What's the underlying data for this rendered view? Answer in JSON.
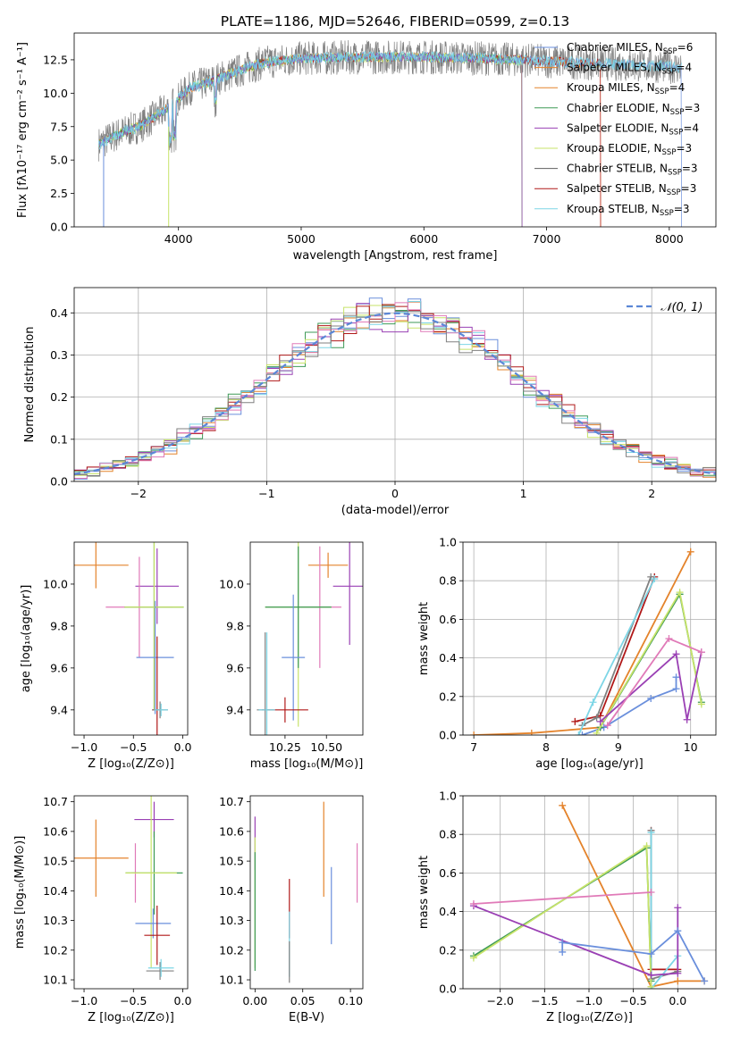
{
  "figure_title": "PLATE=1186, MJD=52646, FIBERID=0599, z=0.13",
  "colors": {
    "blue": "#6a8fdc",
    "orange": "#e4832b",
    "green": "#3e9a57",
    "purple": "#9a40b4",
    "pink": "#e07ab8",
    "lime": "#c7e36a",
    "gray": "#808080",
    "red": "#b01818",
    "cyan": "#7dd6e6"
  },
  "legend": [
    {
      "label": "Chabrier MILES, N",
      "sub": "SSP",
      "eq": "=6",
      "color": "#6a8fdc"
    },
    {
      "label": "Salpeter MILES, N",
      "sub": "SSP",
      "eq": "=4",
      "color": "#e4832b"
    },
    {
      "label": "Kroupa MILES, N",
      "sub": "SSP",
      "eq": "=4",
      "color": "#e4832b"
    },
    {
      "label": "Chabrier ELODIE, N",
      "sub": "SSP",
      "eq": "=3",
      "color": "#3e9a57"
    },
    {
      "label": "Salpeter ELODIE, N",
      "sub": "SSP",
      "eq": "=4",
      "color": "#9a40b4"
    },
    {
      "label": "Kroupa ELODIE, N",
      "sub": "SSP",
      "eq": "=3",
      "color": "#c7e36a"
    },
    {
      "label": "Chabrier STELIB, N",
      "sub": "SSP",
      "eq": "=3",
      "color": "#606060"
    },
    {
      "label": "Salpeter STELIB, N",
      "sub": "SSP",
      "eq": "=3",
      "color": "#b01818"
    },
    {
      "label": "Kroupa STELIB, N",
      "sub": "SSP",
      "eq": "=3",
      "color": "#7dd6e6"
    }
  ],
  "chart_data": [
    {
      "id": "spectrum",
      "type": "line",
      "xlabel": "wavelength [Angstrom, rest frame]",
      "ylabel": "Flux [fλ10⁻¹⁷ erg cm⁻² s⁻¹ A⁻¹]",
      "xlim": [
        3150,
        8380
      ],
      "ylim": [
        0,
        14.5
      ],
      "xticks": [
        4000,
        5000,
        6000,
        7000,
        8000
      ],
      "yticks": [
        0.0,
        2.5,
        5.0,
        7.5,
        10.0,
        12.5
      ],
      "continuum": {
        "x": [
          3350,
          3500,
          3700,
          3900,
          4100,
          4300,
          4500,
          4700,
          5000,
          5500,
          6000,
          6500,
          7000,
          7500,
          8000,
          8100
        ],
        "y": [
          6.2,
          6.9,
          7.6,
          8.8,
          10.4,
          11.0,
          11.7,
          12.3,
          12.6,
          12.7,
          12.7,
          12.6,
          12.4,
          12.2,
          12.0,
          11.9
        ]
      }
    },
    {
      "id": "residuals",
      "type": "histogram",
      "xlabel": "(data-model)/error",
      "ylabel": "Normed distribution",
      "xlim": [
        -2.5,
        2.5
      ],
      "ylim": [
        0,
        0.46
      ],
      "xticks": [
        -2,
        -1,
        0,
        1,
        2
      ],
      "yticks": [
        0.0,
        0.1,
        0.2,
        0.3,
        0.4
      ],
      "grid": true,
      "legend": "𝒩(0, 1)",
      "gaussian": {
        "mean": 0,
        "sigma": 1,
        "style": "dashed"
      },
      "bin_width": 0.1
    },
    {
      "id": "age-vs-Z",
      "type": "errorbar",
      "xlabel": "Z [log₁₀(Z/Z⊙)]",
      "ylabel": "age  [log₁₀(age/yr)]",
      "xlim": [
        -1.1,
        0.05
      ],
      "ylim": [
        9.28,
        10.2
      ],
      "xticks": [
        -1.0,
        -0.5,
        0.0
      ],
      "yticks": [
        9.4,
        9.6,
        9.8,
        10.0
      ],
      "points": [
        {
          "color": "orange",
          "x": -0.88,
          "y": 10.09,
          "xerr": 0.33,
          "yerr": 0.11
        },
        {
          "color": "purple",
          "x": -0.26,
          "y": 9.99,
          "xerr": 0.22,
          "yerr": 0.18
        },
        {
          "color": "pink",
          "x": -0.44,
          "y": 9.89,
          "xerr": 0.34,
          "yerr": 0.24
        },
        {
          "color": "green",
          "x": -0.29,
          "y": 9.89,
          "xerr": 0.3,
          "yerr": 0.49
        },
        {
          "color": "lime",
          "x": -0.29,
          "y": 9.89,
          "xerr": 0.3,
          "yerr": 0.49
        },
        {
          "color": "blue",
          "x": -0.28,
          "y": 9.65,
          "xerr": 0.19,
          "yerr": 0.27
        },
        {
          "color": "red",
          "x": -0.26,
          "y": 9.4,
          "xerr": 0.05,
          "yerr": 0.35
        },
        {
          "color": "gray",
          "x": -0.23,
          "y": 9.4,
          "xerr": 0.08,
          "yerr": 0.04
        },
        {
          "color": "cyan",
          "x": -0.22,
          "y": 9.4,
          "xerr": 0.07,
          "yerr": 0.03
        }
      ]
    },
    {
      "id": "age-vs-mass",
      "type": "errorbar",
      "xlabel": "mass [log₁₀(M/M⊙)]",
      "ylabel": "",
      "xlim": [
        10.04,
        10.72
      ],
      "ylim": [
        9.28,
        10.2
      ],
      "xticks": [
        10.25,
        10.5
      ],
      "yticks": [
        9.4,
        9.6,
        9.8,
        10.0
      ],
      "points": [
        {
          "color": "orange",
          "x": 10.51,
          "y": 10.09,
          "xerr": 0.12,
          "yerr": 0.06
        },
        {
          "color": "purple",
          "x": 10.64,
          "y": 9.99,
          "xerr": 0.1,
          "yerr": 0.28
        },
        {
          "color": "pink",
          "x": 10.46,
          "y": 9.89,
          "xerr": 0.13,
          "yerr": 0.29
        },
        {
          "color": "lime",
          "x": 10.33,
          "y": 9.89,
          "xerr": 0.2,
          "yerr": 0.57
        },
        {
          "color": "green",
          "x": 10.33,
          "y": 9.89,
          "xerr": 0.2,
          "yerr": 0.29
        },
        {
          "color": "blue",
          "x": 10.3,
          "y": 9.65,
          "xerr": 0.07,
          "yerr": 0.3
        },
        {
          "color": "red",
          "x": 10.25,
          "y": 9.4,
          "xerr": 0.14,
          "yerr": 0.06
        },
        {
          "color": "gray",
          "x": 10.13,
          "y": 9.4,
          "xerr": 0.05,
          "yerr": 0.37
        },
        {
          "color": "cyan",
          "x": 10.14,
          "y": 9.4,
          "xerr": 0.05,
          "yerr": 0.37
        }
      ]
    },
    {
      "id": "massweight-vs-age",
      "type": "line",
      "xlabel": "age  [log₁₀(age/yr)]",
      "ylabel": "mass weight",
      "xlim": [
        6.85,
        10.35
      ],
      "ylim": [
        0,
        1.0
      ],
      "xticks": [
        7,
        8,
        9,
        10
      ],
      "yticks": [
        0.0,
        0.2,
        0.4,
        0.6,
        0.8,
        1.0
      ],
      "grid": true,
      "series": [
        {
          "color": "orange",
          "x": [
            7.0,
            7.8,
            8.75,
            10.0
          ],
          "y": [
            0.0,
            0.01,
            0.04,
            0.95
          ]
        },
        {
          "color": "red",
          "x": [
            8.4,
            8.75,
            9.5
          ],
          "y": [
            0.07,
            0.1,
            0.82
          ]
        },
        {
          "color": "gray",
          "x": [
            8.5,
            8.7,
            9.45
          ],
          "y": [
            0.05,
            0.09,
            0.82
          ]
        },
        {
          "color": "cyan",
          "x": [
            8.45,
            8.65,
            9.5
          ],
          "y": [
            0.0,
            0.17,
            0.81
          ]
        },
        {
          "color": "blue",
          "x": [
            8.5,
            8.8,
            9.45,
            9.8,
            9.8
          ],
          "y": [
            0.0,
            0.04,
            0.19,
            0.24,
            0.3
          ]
        },
        {
          "color": "green",
          "x": [
            8.75,
            9.85,
            10.15
          ],
          "y": [
            0.04,
            0.73,
            0.17
          ]
        },
        {
          "color": "lime",
          "x": [
            8.7,
            9.85,
            10.15
          ],
          "y": [
            0.01,
            0.74,
            0.16
          ]
        },
        {
          "color": "purple",
          "x": [
            8.75,
            9.8,
            9.95,
            10.15
          ],
          "y": [
            0.07,
            0.42,
            0.08,
            0.43
          ]
        },
        {
          "color": "pink",
          "x": [
            8.85,
            9.7,
            10.15
          ],
          "y": [
            0.05,
            0.5,
            0.43
          ]
        }
      ]
    },
    {
      "id": "mass-vs-Z",
      "type": "errorbar",
      "xlabel": "Z [log₁₀(Z/Z⊙)]",
      "ylabel": "mass [log₁₀(M/M⊙)]",
      "xlim": [
        -1.1,
        0.05
      ],
      "ylim": [
        10.07,
        10.72
      ],
      "xticks": [
        -1.0,
        -0.5,
        0.0
      ],
      "yticks": [
        10.1,
        10.2,
        10.3,
        10.4,
        10.5,
        10.6,
        10.7
      ],
      "points": [
        {
          "color": "orange",
          "x": -0.88,
          "y": 10.51,
          "xerr": 0.33,
          "yerr": 0.13
        },
        {
          "color": "purple",
          "x": -0.29,
          "y": 10.64,
          "xerr": 0.2,
          "yerr": 0.06
        },
        {
          "color": "pink",
          "x": -0.48,
          "y": 10.46,
          "xerr": 0.04,
          "yerr": 0.1
        },
        {
          "color": "green",
          "x": -0.29,
          "y": 10.46,
          "xerr": 0.29,
          "yerr": 0.14
        },
        {
          "color": "lime",
          "x": -0.32,
          "y": 10.46,
          "xerr": 0.26,
          "yerr": 0.32
        },
        {
          "color": "blue",
          "x": -0.3,
          "y": 10.29,
          "xerr": 0.18,
          "yerr": 0.05
        },
        {
          "color": "red",
          "x": -0.26,
          "y": 10.25,
          "xerr": 0.13,
          "yerr": 0.1
        },
        {
          "color": "gray",
          "x": -0.23,
          "y": 10.13,
          "xerr": 0.14,
          "yerr": 0.03
        },
        {
          "color": "cyan",
          "x": -0.22,
          "y": 10.14,
          "xerr": 0.13,
          "yerr": 0.03
        }
      ]
    },
    {
      "id": "mass-vs-EBV",
      "type": "errorbar",
      "xlabel": "E(B-V)",
      "ylabel": "",
      "xlim": [
        -0.005,
        0.113
      ],
      "ylim": [
        10.07,
        10.72
      ],
      "xticks": [
        0.0,
        0.05,
        0.1
      ],
      "yticks": [
        10.1,
        10.2,
        10.3,
        10.4,
        10.5,
        10.6,
        10.7
      ],
      "points": [
        {
          "color": "purple",
          "x": 0.0,
          "y": 10.56,
          "yerr": 0.09
        },
        {
          "color": "lime",
          "x": 0.0,
          "y": 10.36,
          "yerr": 0.22
        },
        {
          "color": "green",
          "x": 0.0,
          "y": 10.33,
          "yerr": 0.2
        },
        {
          "color": "red",
          "x": 0.036,
          "y": 10.34,
          "yerr": 0.1
        },
        {
          "color": "cyan",
          "x": 0.036,
          "y": 10.22,
          "yerr": 0.11
        },
        {
          "color": "gray",
          "x": 0.036,
          "y": 10.16,
          "yerr": 0.07
        },
        {
          "color": "orange",
          "x": 0.072,
          "y": 10.54,
          "yerr": 0.16
        },
        {
          "color": "blue",
          "x": 0.08,
          "y": 10.35,
          "yerr": 0.13
        },
        {
          "color": "pink",
          "x": 0.107,
          "y": 10.46,
          "yerr": 0.1
        }
      ]
    },
    {
      "id": "massweight-vs-Z",
      "type": "line",
      "xlabel": "Z [log₁₀(Z/Z⊙)]",
      "ylabel": "mass weight",
      "xlim": [
        -2.42,
        0.43
      ],
      "ylim": [
        0,
        1.0
      ],
      "xticks": [
        -2.0,
        -1.5,
        -1.0,
        -0.5,
        0.0
      ],
      "yticks": [
        0.0,
        0.2,
        0.4,
        0.6,
        0.8,
        1.0
      ],
      "grid": true,
      "series": [
        {
          "color": "orange",
          "x": [
            -1.3,
            -0.3,
            0.0,
            0.3
          ],
          "y": [
            0.95,
            0.01,
            0.04,
            0.04
          ]
        },
        {
          "color": "red",
          "x": [
            -0.3,
            -0.3,
            0.0
          ],
          "y": [
            0.82,
            0.1,
            0.1
          ]
        },
        {
          "color": "gray",
          "x": [
            -0.3,
            -0.3,
            0.0
          ],
          "y": [
            0.82,
            0.05,
            0.09
          ]
        },
        {
          "color": "cyan",
          "x": [
            -0.3,
            -0.3,
            0.0
          ],
          "y": [
            0.81,
            0.0,
            0.17
          ]
        },
        {
          "color": "green",
          "x": [
            -2.3,
            -0.35,
            -0.3
          ],
          "y": [
            0.17,
            0.73,
            0.04
          ]
        },
        {
          "color": "lime",
          "x": [
            -2.3,
            -0.35,
            -0.3
          ],
          "y": [
            0.16,
            0.74,
            0.01
          ]
        },
        {
          "color": "purple",
          "x": [
            -2.3,
            -0.3,
            0.0,
            0.0
          ],
          "y": [
            0.43,
            0.07,
            0.08,
            0.42
          ]
        },
        {
          "color": "pink",
          "x": [
            -2.3,
            -0.3
          ],
          "y": [
            0.44,
            0.5
          ]
        },
        {
          "color": "blue",
          "x": [
            -1.3,
            -1.3,
            -0.3,
            0.0,
            0.3
          ],
          "y": [
            0.19,
            0.24,
            0.18,
            0.3,
            0.04
          ]
        }
      ]
    }
  ]
}
